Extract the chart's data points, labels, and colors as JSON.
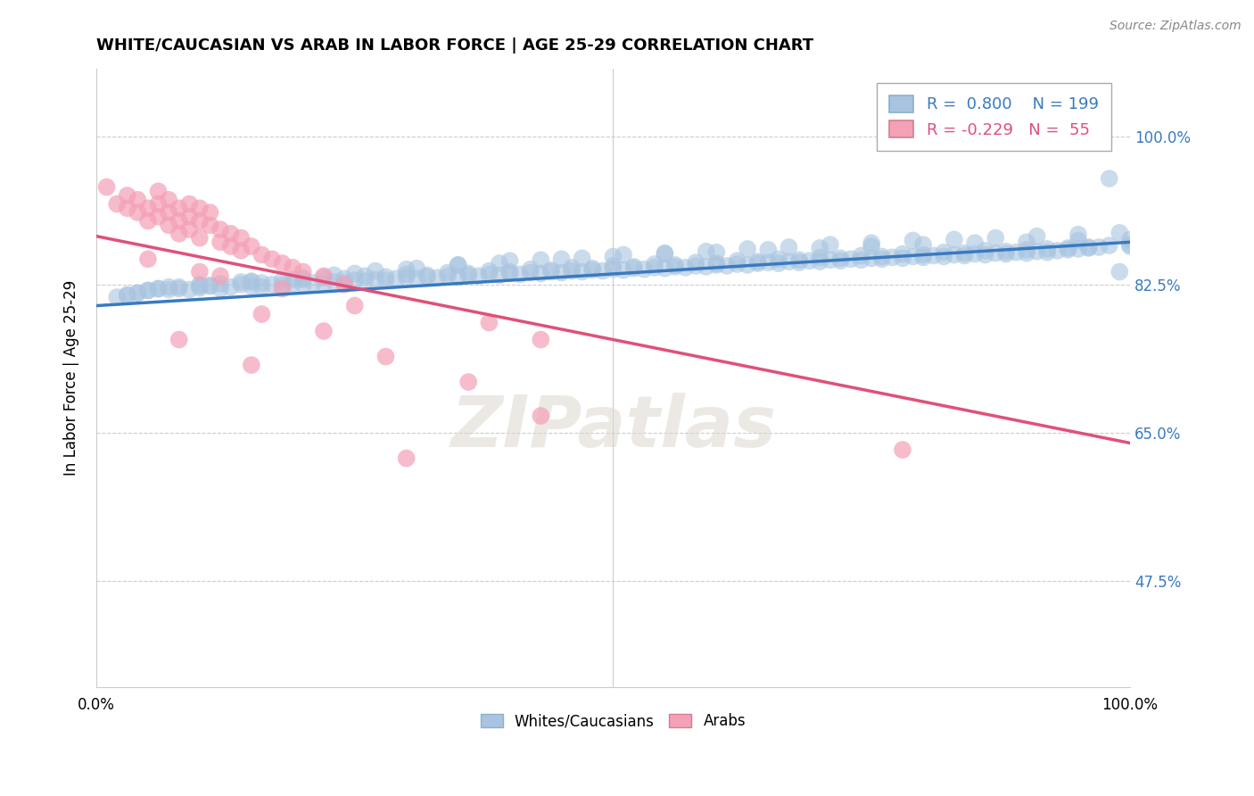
{
  "title": "WHITE/CAUCASIAN VS ARAB IN LABOR FORCE | AGE 25-29 CORRELATION CHART",
  "source_text": "Source: ZipAtlas.com",
  "ylabel": "In Labor Force | Age 25-29",
  "xlim": [
    0.0,
    1.0
  ],
  "ylim": [
    0.35,
    1.08
  ],
  "yticks": [
    0.475,
    0.65,
    0.825,
    1.0
  ],
  "ytick_labels": [
    "47.5%",
    "65.0%",
    "82.5%",
    "100.0%"
  ],
  "xtick_labels": [
    "0.0%",
    "100.0%"
  ],
  "xticks": [
    0.0,
    1.0
  ],
  "blue_R": 0.8,
  "blue_N": 199,
  "pink_R": -0.229,
  "pink_N": 55,
  "blue_color": "#a8c4e0",
  "pink_color": "#f4a0b5",
  "blue_line_color": "#3a7abf",
  "pink_line_color": "#e0507a",
  "watermark_text": "ZIPatlas",
  "blue_trendline_x": [
    0.0,
    1.0
  ],
  "blue_trendline_y": [
    0.8,
    0.875
  ],
  "pink_trendline_x": [
    0.0,
    1.0
  ],
  "pink_trendline_y": [
    0.882,
    0.638
  ],
  "blue_scatter_x": [
    0.02,
    0.03,
    0.04,
    0.05,
    0.06,
    0.07,
    0.08,
    0.09,
    0.1,
    0.11,
    0.12,
    0.13,
    0.14,
    0.15,
    0.16,
    0.17,
    0.18,
    0.19,
    0.2,
    0.21,
    0.22,
    0.23,
    0.24,
    0.25,
    0.26,
    0.27,
    0.28,
    0.29,
    0.3,
    0.31,
    0.32,
    0.33,
    0.34,
    0.35,
    0.36,
    0.37,
    0.38,
    0.39,
    0.4,
    0.41,
    0.42,
    0.43,
    0.44,
    0.45,
    0.46,
    0.47,
    0.48,
    0.49,
    0.5,
    0.51,
    0.52,
    0.53,
    0.54,
    0.55,
    0.56,
    0.57,
    0.58,
    0.59,
    0.6,
    0.61,
    0.62,
    0.63,
    0.64,
    0.65,
    0.66,
    0.67,
    0.68,
    0.69,
    0.7,
    0.71,
    0.72,
    0.73,
    0.74,
    0.75,
    0.76,
    0.77,
    0.78,
    0.79,
    0.8,
    0.81,
    0.82,
    0.83,
    0.84,
    0.85,
    0.86,
    0.87,
    0.88,
    0.89,
    0.9,
    0.91,
    0.92,
    0.93,
    0.94,
    0.95,
    0.96,
    0.97,
    0.98,
    0.99,
    1.0,
    0.04,
    0.06,
    0.08,
    0.1,
    0.12,
    0.14,
    0.16,
    0.18,
    0.2,
    0.22,
    0.24,
    0.26,
    0.28,
    0.3,
    0.32,
    0.34,
    0.36,
    0.38,
    0.4,
    0.42,
    0.44,
    0.46,
    0.48,
    0.5,
    0.52,
    0.54,
    0.56,
    0.58,
    0.6,
    0.62,
    0.64,
    0.66,
    0.68,
    0.7,
    0.72,
    0.74,
    0.76,
    0.78,
    0.8,
    0.82,
    0.84,
    0.86,
    0.88,
    0.9,
    0.92,
    0.94,
    0.96,
    0.98,
    1.0,
    0.05,
    0.1,
    0.15,
    0.2,
    0.25,
    0.3,
    0.35,
    0.4,
    0.45,
    0.5,
    0.55,
    0.6,
    0.65,
    0.7,
    0.75,
    0.8,
    0.85,
    0.9,
    0.95,
    1.0,
    0.03,
    0.07,
    0.11,
    0.15,
    0.19,
    0.23,
    0.27,
    0.31,
    0.35,
    0.39,
    0.43,
    0.47,
    0.51,
    0.55,
    0.59,
    0.63,
    0.67,
    0.71,
    0.75,
    0.79,
    0.83,
    0.87,
    0.91,
    0.95,
    0.99
  ],
  "blue_scatter_y": [
    0.81,
    0.812,
    0.815,
    0.818,
    0.82,
    0.822,
    0.82,
    0.819,
    0.821,
    0.823,
    0.82,
    0.822,
    0.825,
    0.823,
    0.822,
    0.825,
    0.824,
    0.826,
    0.825,
    0.827,
    0.826,
    0.828,
    0.827,
    0.83,
    0.829,
    0.831,
    0.83,
    0.832,
    0.833,
    0.832,
    0.834,
    0.833,
    0.835,
    0.834,
    0.836,
    0.835,
    0.837,
    0.836,
    0.838,
    0.837,
    0.839,
    0.838,
    0.84,
    0.839,
    0.841,
    0.84,
    0.842,
    0.841,
    0.843,
    0.842,
    0.844,
    0.843,
    0.845,
    0.844,
    0.846,
    0.845,
    0.847,
    0.846,
    0.848,
    0.847,
    0.849,
    0.848,
    0.85,
    0.851,
    0.85,
    0.852,
    0.851,
    0.853,
    0.852,
    0.854,
    0.853,
    0.855,
    0.854,
    0.856,
    0.855,
    0.857,
    0.856,
    0.858,
    0.857,
    0.859,
    0.858,
    0.86,
    0.859,
    0.861,
    0.86,
    0.862,
    0.861,
    0.863,
    0.862,
    0.864,
    0.863,
    0.865,
    0.866,
    0.867,
    0.868,
    0.869,
    0.95,
    0.84,
    0.87,
    0.815,
    0.82,
    0.822,
    0.825,
    0.826,
    0.828,
    0.827,
    0.83,
    0.831,
    0.833,
    0.832,
    0.835,
    0.834,
    0.837,
    0.836,
    0.839,
    0.838,
    0.841,
    0.84,
    0.843,
    0.842,
    0.845,
    0.844,
    0.847,
    0.846,
    0.849,
    0.848,
    0.851,
    0.85,
    0.853,
    0.852,
    0.855,
    0.854,
    0.857,
    0.856,
    0.859,
    0.858,
    0.861,
    0.86,
    0.863,
    0.862,
    0.865,
    0.864,
    0.866,
    0.867,
    0.868,
    0.869,
    0.871,
    0.872,
    0.818,
    0.823,
    0.828,
    0.833,
    0.838,
    0.843,
    0.848,
    0.853,
    0.855,
    0.858,
    0.861,
    0.863,
    0.866,
    0.868,
    0.87,
    0.872,
    0.874,
    0.875,
    0.877,
    0.878,
    0.813,
    0.819,
    0.824,
    0.829,
    0.831,
    0.836,
    0.841,
    0.844,
    0.848,
    0.85,
    0.854,
    0.856,
    0.86,
    0.862,
    0.864,
    0.867,
    0.869,
    0.872,
    0.874,
    0.877,
    0.878,
    0.88,
    0.882,
    0.884,
    0.886
  ],
  "pink_scatter_x": [
    0.01,
    0.02,
    0.03,
    0.03,
    0.04,
    0.04,
    0.05,
    0.05,
    0.06,
    0.06,
    0.06,
    0.07,
    0.07,
    0.07,
    0.08,
    0.08,
    0.08,
    0.09,
    0.09,
    0.09,
    0.1,
    0.1,
    0.1,
    0.11,
    0.11,
    0.12,
    0.12,
    0.13,
    0.13,
    0.14,
    0.14,
    0.15,
    0.16,
    0.17,
    0.18,
    0.19,
    0.2,
    0.22,
    0.24,
    0.16,
    0.22,
    0.28,
    0.36,
    0.43,
    0.08,
    0.15,
    0.3,
    0.78,
    0.05,
    0.1,
    0.12,
    0.18,
    0.25,
    0.38,
    0.43
  ],
  "pink_scatter_y": [
    0.94,
    0.92,
    0.915,
    0.93,
    0.91,
    0.925,
    0.9,
    0.915,
    0.905,
    0.92,
    0.935,
    0.895,
    0.91,
    0.925,
    0.9,
    0.915,
    0.885,
    0.905,
    0.89,
    0.92,
    0.9,
    0.915,
    0.88,
    0.895,
    0.91,
    0.89,
    0.875,
    0.885,
    0.87,
    0.88,
    0.865,
    0.87,
    0.86,
    0.855,
    0.85,
    0.845,
    0.84,
    0.835,
    0.825,
    0.79,
    0.77,
    0.74,
    0.71,
    0.67,
    0.76,
    0.73,
    0.62,
    0.63,
    0.855,
    0.84,
    0.835,
    0.82,
    0.8,
    0.78,
    0.76
  ]
}
